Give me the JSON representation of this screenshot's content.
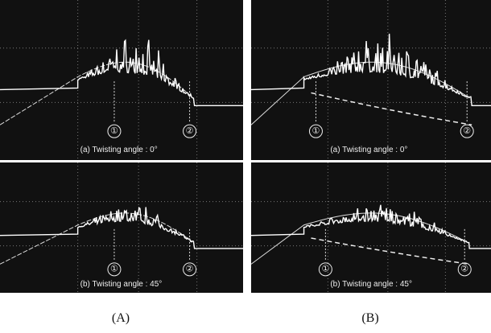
{
  "panels": [
    {
      "label": "(A)",
      "plots": [
        {
          "caption": "(a) Twisting angle : 0°",
          "markers": [
            "①",
            "②"
          ]
        },
        {
          "caption": "(b) Twisting angle : 45°",
          "markers": [
            "①",
            "②"
          ]
        }
      ]
    },
    {
      "label": "(B)",
      "plots": [
        {
          "caption": "(a) Twisting angle : 0°",
          "markers": [
            "①",
            "②"
          ]
        },
        {
          "caption": "(b) Twisting angle : 45°",
          "markers": [
            "①",
            "②"
          ]
        }
      ]
    }
  ]
}
